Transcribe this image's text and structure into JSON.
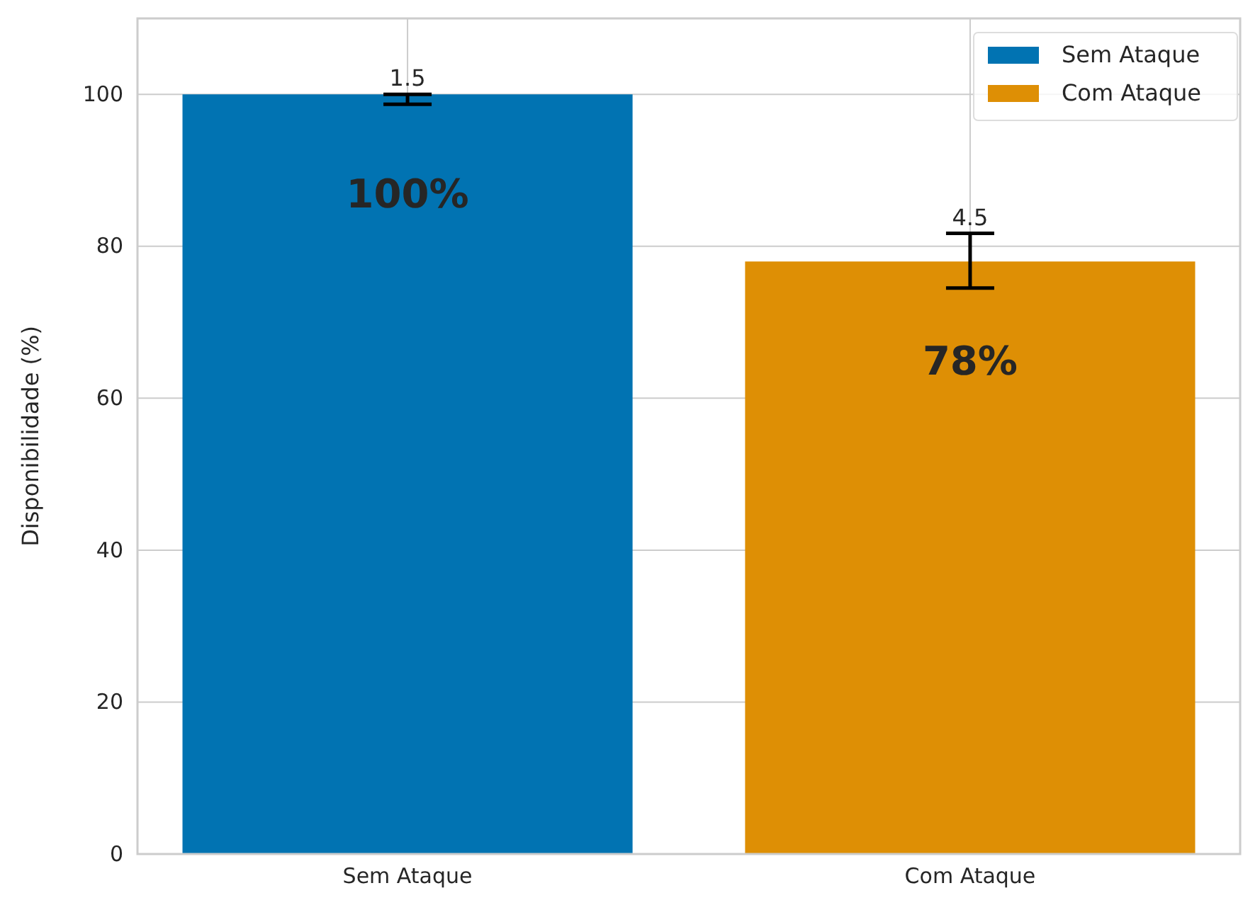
{
  "chart_data": {
    "type": "bar",
    "ylabel": "Disponibilidade (%)",
    "categories": [
      "Sem Ataque",
      "Com Ataque"
    ],
    "series": [
      {
        "name": "Sem Ataque",
        "color": "#0173b2",
        "values": [
          100,
          null
        ],
        "errors": [
          [
            98.7,
            100
          ],
          null
        ],
        "value_labels": [
          "100%",
          null
        ]
      },
      {
        "name": "Com Ataque",
        "color": "#de8f05",
        "values": [
          null,
          78
        ],
        "errors": [
          null,
          [
            74.5,
            81.7
          ]
        ],
        "value_labels": [
          null,
          "78%"
        ]
      }
    ],
    "annotations": [
      {
        "text": "1.5",
        "x": "Sem Ataque",
        "y": 100
      },
      {
        "text": "4.5",
        "x": "Com Ataque",
        "y": 81.7
      }
    ],
    "ylim": [
      0,
      110
    ],
    "yticks": [
      0,
      20,
      40,
      60,
      80,
      100
    ],
    "grid": true,
    "legend": "top right"
  }
}
